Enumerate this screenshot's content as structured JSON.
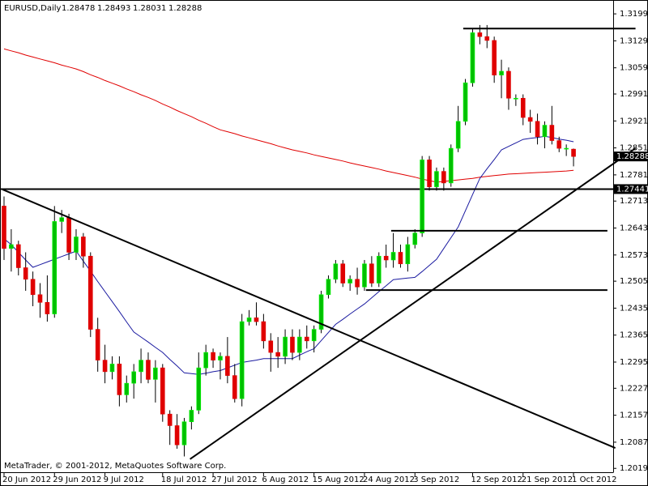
{
  "chart_data": {
    "type": "candlestick",
    "title": "EURUSD,Daily",
    "footer": "MetaTrader, © 2001-2012, MetaQuotes Software Corp.",
    "up_color": "#00c000",
    "down_color": "#e00000",
    "open": [
      1.27,
      1.259,
      1.26,
      1.254,
      1.251,
      1.247,
      1.245,
      1.242,
      1.266,
      1.267,
      1.258,
      1.262,
      1.257,
      1.238,
      1.23,
      1.227,
      1.229,
      1.221,
      1.224,
      1.227,
      1.23,
      1.225,
      1.228,
      1.216,
      1.213,
      1.208,
      1.214,
      1.217,
      1.228,
      1.232,
      1.23,
      1.231,
      1.226,
      1.22,
      1.24,
      1.241,
      1.24,
      1.235,
      1.232,
      1.231,
      1.236,
      1.232,
      1.236,
      1.235,
      1.238,
      1.247,
      1.251,
      1.255,
      1.25,
      1.251,
      1.249,
      1.255,
      1.25,
      1.257,
      1.256,
      1.258,
      1.255,
      1.26,
      1.263,
      1.282,
      1.275,
      1.279,
      1.276,
      1.285,
      1.292,
      1.302,
      1.315,
      1.314,
      1.313,
      1.304,
      1.305,
      1.298,
      1.298,
      1.293,
      1.292,
      1.288,
      1.291,
      1.287,
      1.285,
      1.28478
    ],
    "high": [
      1.2725,
      1.264,
      1.261,
      1.258,
      1.253,
      1.25,
      1.252,
      1.27,
      1.269,
      1.268,
      1.264,
      1.263,
      1.258,
      1.241,
      1.234,
      1.231,
      1.231,
      1.226,
      1.229,
      1.233,
      1.232,
      1.23,
      1.229,
      1.217,
      1.216,
      1.215,
      1.218,
      1.232,
      1.234,
      1.233,
      1.232,
      1.236,
      1.229,
      1.242,
      1.243,
      1.245,
      1.242,
      1.237,
      1.236,
      1.238,
      1.238,
      1.238,
      1.239,
      1.239,
      1.248,
      1.252,
      1.256,
      1.256,
      1.252,
      1.254,
      1.256,
      1.257,
      1.258,
      1.26,
      1.263,
      1.26,
      1.262,
      1.264,
      1.283,
      1.283,
      1.28,
      1.28,
      1.286,
      1.296,
      1.303,
      1.316,
      1.317,
      1.317,
      1.314,
      1.308,
      1.306,
      1.299,
      1.299,
      1.295,
      1.294,
      1.292,
      1.296,
      1.288,
      1.286,
      1.28493
    ],
    "low": [
      1.256,
      1.253,
      1.252,
      1.248,
      1.244,
      1.241,
      1.24,
      1.241,
      1.263,
      1.256,
      1.256,
      1.254,
      1.236,
      1.227,
      1.224,
      1.225,
      1.218,
      1.219,
      1.22,
      1.224,
      1.224,
      1.219,
      1.214,
      1.208,
      1.207,
      1.205,
      1.212,
      1.216,
      1.226,
      1.228,
      1.225,
      1.224,
      1.219,
      1.218,
      1.239,
      1.239,
      1.233,
      1.227,
      1.228,
      1.229,
      1.23,
      1.23,
      1.233,
      1.232,
      1.237,
      1.246,
      1.25,
      1.249,
      1.248,
      1.247,
      1.248,
      1.249,
      1.249,
      1.254,
      1.254,
      1.254,
      1.253,
      1.259,
      1.262,
      1.274,
      1.274,
      1.274,
      1.275,
      1.284,
      1.291,
      1.301,
      1.312,
      1.311,
      1.302,
      1.298,
      1.295,
      1.296,
      1.291,
      1.289,
      1.286,
      1.285,
      1.286,
      1.284,
      1.283,
      1.28031
    ],
    "close": [
      1.259,
      1.26,
      1.254,
      1.251,
      1.247,
      1.245,
      1.242,
      1.266,
      1.267,
      1.258,
      1.262,
      1.257,
      1.238,
      1.23,
      1.227,
      1.229,
      1.221,
      1.224,
      1.227,
      1.23,
      1.225,
      1.228,
      1.216,
      1.213,
      1.208,
      1.214,
      1.217,
      1.228,
      1.232,
      1.23,
      1.231,
      1.226,
      1.22,
      1.24,
      1.241,
      1.24,
      1.235,
      1.232,
      1.231,
      1.236,
      1.232,
      1.236,
      1.235,
      1.238,
      1.247,
      1.251,
      1.255,
      1.25,
      1.251,
      1.249,
      1.255,
      1.25,
      1.257,
      1.256,
      1.258,
      1.255,
      1.26,
      1.263,
      1.282,
      1.275,
      1.279,
      1.276,
      1.285,
      1.292,
      1.302,
      1.315,
      1.314,
      1.313,
      1.304,
      1.305,
      1.298,
      1.298,
      1.293,
      1.292,
      1.288,
      1.291,
      1.287,
      1.285,
      1.285,
      1.28288
    ],
    "moving_averages": [
      {
        "color": "#e00000",
        "values": [
          1.3108,
          1.3103,
          1.3098,
          1.3092,
          1.3087,
          1.3082,
          1.3077,
          1.3072,
          1.3066,
          1.3061,
          1.3056,
          1.3049,
          1.3041,
          1.3034,
          1.3026,
          1.3019,
          1.3012,
          1.3004,
          1.2997,
          1.2989,
          1.2982,
          1.2974,
          1.2965,
          1.2957,
          1.2948,
          1.294,
          1.2932,
          1.2923,
          1.2915,
          1.2906,
          1.2898,
          1.2893,
          1.2888,
          1.2882,
          1.2877,
          1.2872,
          1.2867,
          1.2862,
          1.2856,
          1.2851,
          1.2846,
          1.2842,
          1.2838,
          1.2833,
          1.2829,
          1.2825,
          1.2821,
          1.2817,
          1.2812,
          1.2808,
          1.2804,
          1.28,
          1.2796,
          1.2791,
          1.2787,
          1.2783,
          1.2779,
          1.2775,
          1.277,
          1.2766,
          1.2762,
          1.2764,
          1.2766,
          1.2768,
          1.277,
          1.2772,
          1.2775,
          1.2777,
          1.2779,
          1.2781,
          1.2783,
          1.2784,
          1.2785,
          1.2786,
          1.2787,
          1.2788,
          1.2789,
          1.279,
          1.2791,
          1.2793
        ]
      },
      {
        "color": "#1a1aa0",
        "values": [
          1.2615,
          1.26,
          1.258,
          1.256,
          1.2541,
          1.2548,
          1.2555,
          1.2562,
          1.2569,
          1.2576,
          1.2583,
          1.2557,
          1.2531,
          1.2504,
          1.2478,
          1.2452,
          1.2426,
          1.2399,
          1.2373,
          1.236,
          1.2347,
          1.2333,
          1.232,
          1.2302,
          1.2285,
          1.2267,
          1.2265,
          1.2263,
          1.2266,
          1.227,
          1.2273,
          1.228,
          1.2287,
          1.2294,
          1.2297,
          1.23,
          1.2304,
          1.2304,
          1.2304,
          1.2304,
          1.2304,
          1.2313,
          1.2322,
          1.233,
          1.2351,
          1.2372,
          1.2393,
          1.2406,
          1.242,
          1.2433,
          1.2446,
          1.2462,
          1.2478,
          1.2493,
          1.2509,
          1.2511,
          1.2513,
          1.2515,
          1.253,
          1.2546,
          1.2562,
          1.259,
          1.2618,
          1.2646,
          1.2688,
          1.273,
          1.2772,
          1.2797,
          1.2821,
          1.2846,
          1.2855,
          1.2864,
          1.2873,
          1.2876,
          1.2878,
          1.2881,
          1.2878,
          1.2874,
          1.2871,
          1.2867
        ]
      }
    ],
    "hlines": [
      1.27441
    ],
    "lines": [
      {
        "x": [
          -0.2,
          84.8
        ],
        "y": [
          1.2743,
          1.2072
        ]
      },
      {
        "x": [
          25.8,
          87.6
        ],
        "y": [
          1.2043,
          1.285
        ]
      },
      {
        "x": [
          63.7,
          87.6
        ],
        "y": [
          1.3161,
          1.3161
        ]
      },
      {
        "x": [
          53.7,
          83.7
        ],
        "y": [
          1.2636,
          1.2636
        ]
      },
      {
        "x": [
          50.2,
          83.7
        ],
        "y": [
          1.2482,
          1.2482
        ]
      }
    ],
    "xlim": [
      -0.56,
      84.5
    ],
    "ylim": [
      1.2009,
      1.3235
    ],
    "xticks": [
      {
        "value": 0,
        "label": "20 Jun 2012"
      },
      {
        "value": 7,
        "label": "29 Jun 2012"
      },
      {
        "value": 14,
        "label": "9 Jul 2012"
      },
      {
        "value": 22,
        "label": "18 Jul 2012"
      },
      {
        "value": 29,
        "label": "27 Jul 2012"
      },
      {
        "value": 36,
        "label": "6 Aug 2012"
      },
      {
        "value": 43,
        "label": "15 Aug 2012"
      },
      {
        "value": 50,
        "label": "24 Aug 2012"
      },
      {
        "value": 57,
        "label": "3 Sep 2012"
      },
      {
        "value": 65,
        "label": "12 Sep 2012"
      },
      {
        "value": 72,
        "label": "21 Sep 2012"
      },
      {
        "value": 79,
        "label": "1 Oct 2012"
      }
    ],
    "yticks": [
      {
        "value": 1.3199,
        "label": "1.31990"
      },
      {
        "value": 1.3129,
        "label": "1.31290"
      },
      {
        "value": 1.3059,
        "label": "1.30590"
      },
      {
        "value": 1.2991,
        "label": "1.29910"
      },
      {
        "value": 1.2921,
        "label": "1.29210"
      },
      {
        "value": 1.2851,
        "label": "1.28510"
      },
      {
        "value": 1.2781,
        "label": "1.27810"
      },
      {
        "value": 1.2713,
        "label": "1.27130"
      },
      {
        "value": 1.2643,
        "label": "1.26430"
      },
      {
        "value": 1.2573,
        "label": "1.25730"
      },
      {
        "value": 1.2505,
        "label": "1.25050"
      },
      {
        "value": 1.2435,
        "label": "1.24350"
      },
      {
        "value": 1.2365,
        "label": "1.23650"
      },
      {
        "value": 1.2295,
        "label": "1.22950"
      },
      {
        "value": 1.2227,
        "label": "1.22270"
      },
      {
        "value": 1.2157,
        "label": "1.21570"
      },
      {
        "value": 1.2087,
        "label": "1.20870"
      },
      {
        "value": 1.2019,
        "label": "1.20190"
      }
    ]
  }
}
